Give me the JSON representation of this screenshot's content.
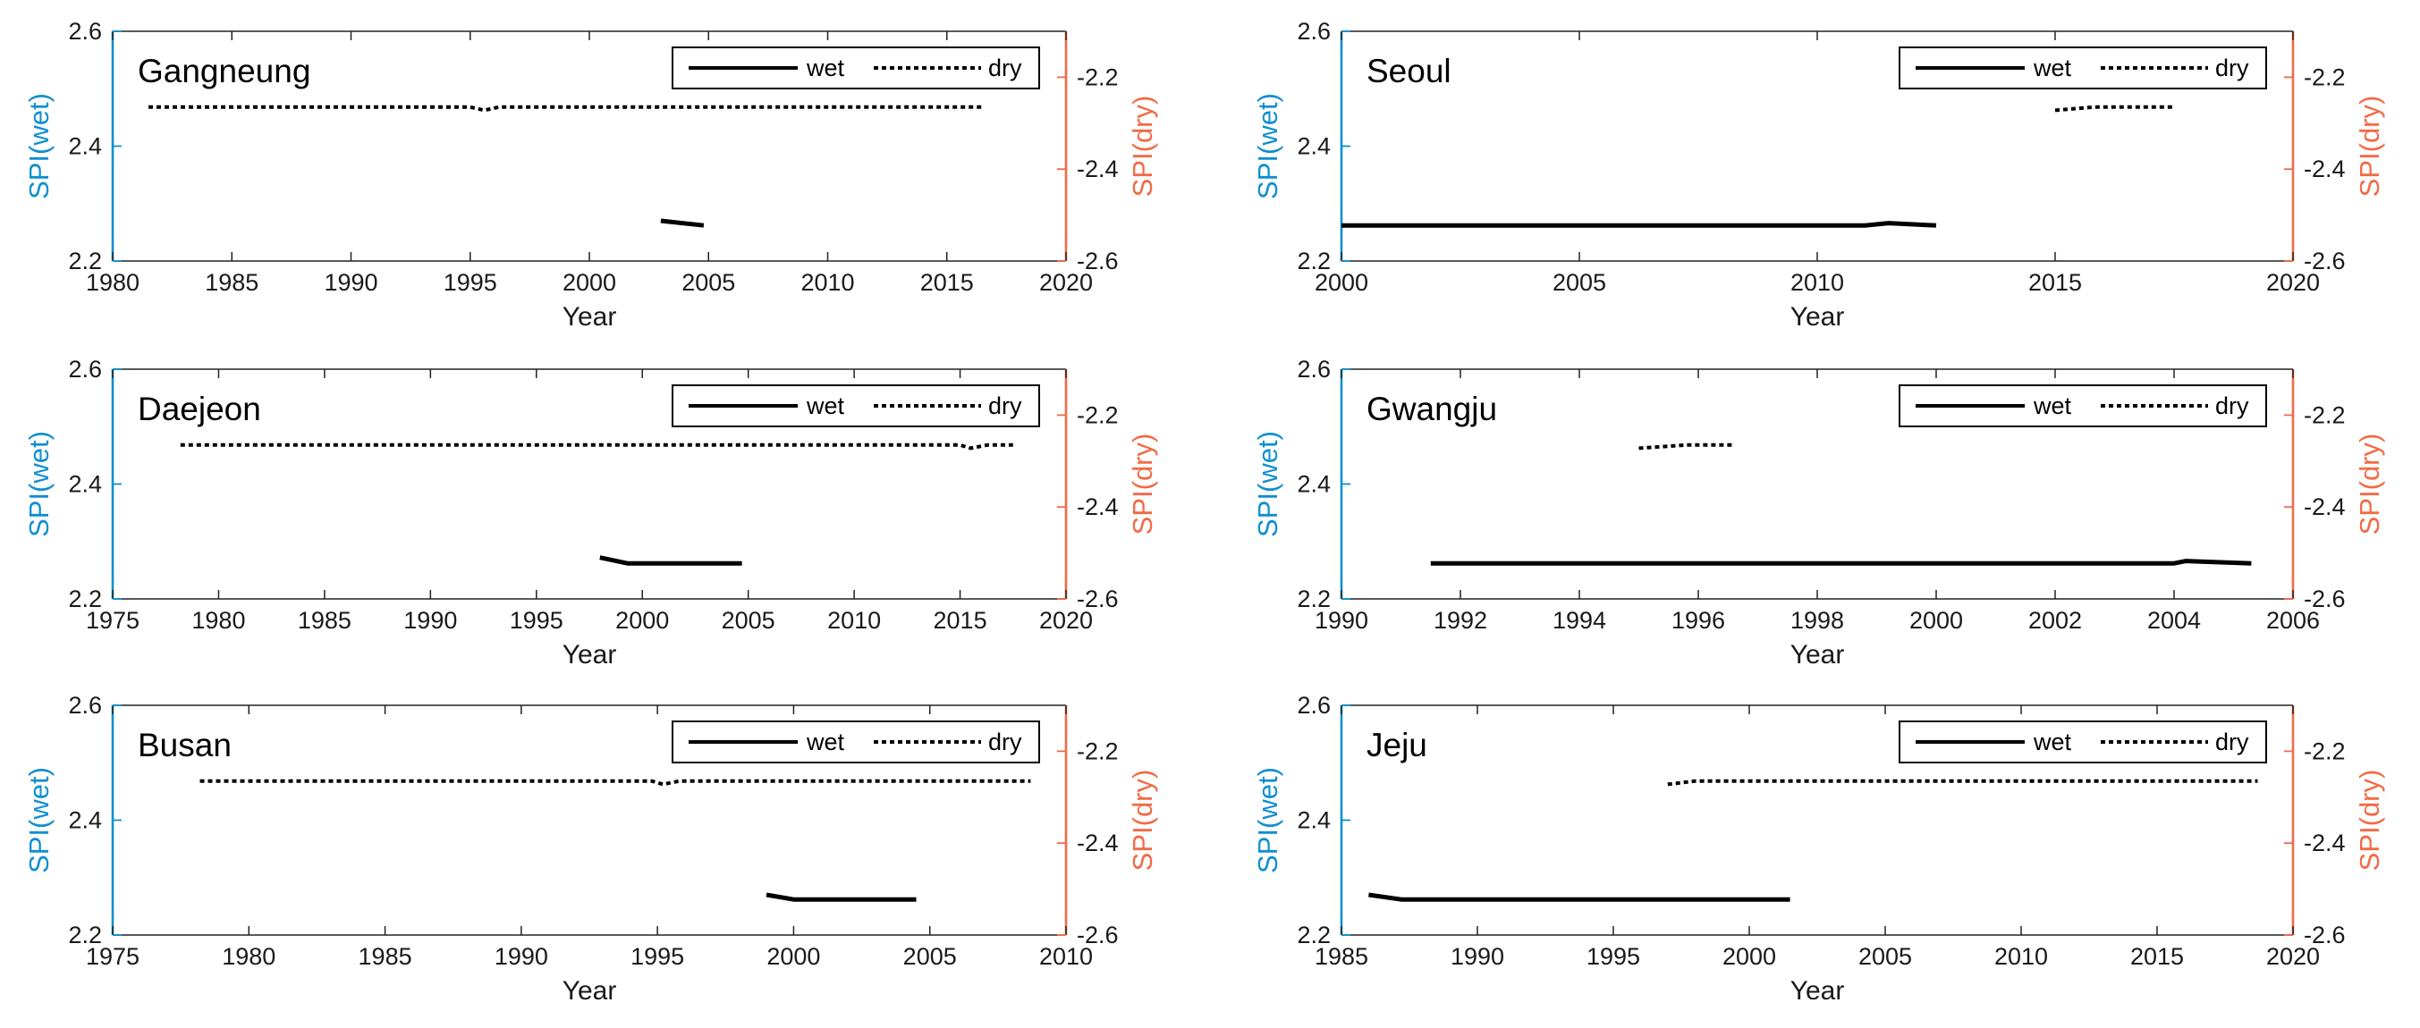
{
  "legend": {
    "wet": "wet",
    "dry": "dry"
  },
  "colors": {
    "wet_axis": "#0f8fd0",
    "dry_axis": "#f26a45",
    "series": "#000000"
  },
  "chart_data": [
    {
      "type": "line",
      "title": "Gangneung",
      "xlabel": "Year",
      "ylabel_left": "SPI(wet)",
      "ylabel_right": "SPI(dry)",
      "xlim": [
        1980,
        2020
      ],
      "xticks": [
        1980,
        1985,
        1990,
        1995,
        2000,
        2005,
        2010,
        2015,
        2020
      ],
      "ylim_wet": [
        2.2,
        2.6
      ],
      "yticks_wet": [
        2.2,
        2.4,
        2.6
      ],
      "ylim_dry": [
        -2.6,
        -2.1
      ],
      "yticks_dry": [
        -2.6,
        -2.4,
        -2.2
      ],
      "series": [
        {
          "name": "wet",
          "style": "solid",
          "points": [
            [
              2003,
              2.27
            ],
            [
              2004.8,
              2.262
            ]
          ]
        },
        {
          "name": "dry",
          "style": "dotted",
          "points": [
            [
              1981.5,
              -2.265
            ],
            [
              1995,
              -2.265
            ],
            [
              1995.6,
              -2.272
            ],
            [
              1996.2,
              -2.265
            ],
            [
              2016.5,
              -2.265
            ]
          ]
        }
      ]
    },
    {
      "type": "line",
      "title": "Seoul",
      "xlabel": "Year",
      "ylabel_left": "SPI(wet)",
      "ylabel_right": "SPI(dry)",
      "xlim": [
        2000,
        2020
      ],
      "xticks": [
        2000,
        2005,
        2010,
        2015,
        2020
      ],
      "ylim_wet": [
        2.2,
        2.6
      ],
      "yticks_wet": [
        2.2,
        2.4,
        2.6
      ],
      "ylim_dry": [
        -2.6,
        -2.1
      ],
      "yticks_dry": [
        -2.6,
        -2.4,
        -2.2
      ],
      "series": [
        {
          "name": "wet",
          "style": "solid",
          "points": [
            [
              2000,
              2.262
            ],
            [
              2011,
              2.262
            ],
            [
              2011.5,
              2.266
            ],
            [
              2012.5,
              2.262
            ]
          ]
        },
        {
          "name": "dry",
          "style": "dotted",
          "points": [
            [
              2015,
              -2.272
            ],
            [
              2015.8,
              -2.265
            ],
            [
              2017.5,
              -2.265
            ]
          ]
        }
      ]
    },
    {
      "type": "line",
      "title": "Daejeon",
      "xlabel": "Year",
      "ylabel_left": "SPI(wet)",
      "ylabel_right": "SPI(dry)",
      "xlim": [
        1975,
        2020
      ],
      "xticks": [
        1975,
        1980,
        1985,
        1990,
        1995,
        2000,
        2005,
        2010,
        2015,
        2020
      ],
      "ylim_wet": [
        2.2,
        2.6
      ],
      "yticks_wet": [
        2.2,
        2.4,
        2.6
      ],
      "ylim_dry": [
        -2.6,
        -2.1
      ],
      "yticks_dry": [
        -2.6,
        -2.4,
        -2.2
      ],
      "series": [
        {
          "name": "wet",
          "style": "solid",
          "points": [
            [
              1998,
              2.272
            ],
            [
              1999.3,
              2.262
            ],
            [
              2004.7,
              2.262
            ]
          ]
        },
        {
          "name": "dry",
          "style": "dotted",
          "points": [
            [
              1978.2,
              -2.265
            ],
            [
              2015,
              -2.265
            ],
            [
              2015.5,
              -2.272
            ],
            [
              2016.3,
              -2.265
            ],
            [
              2017.5,
              -2.265
            ]
          ]
        }
      ]
    },
    {
      "type": "line",
      "title": "Gwangju",
      "xlabel": "Year",
      "ylabel_left": "SPI(wet)",
      "ylabel_right": "SPI(dry)",
      "xlim": [
        1990,
        2006
      ],
      "xticks": [
        1990,
        1992,
        1994,
        1996,
        1998,
        2000,
        2002,
        2004,
        2006
      ],
      "ylim_wet": [
        2.2,
        2.6
      ],
      "yticks_wet": [
        2.2,
        2.4,
        2.6
      ],
      "ylim_dry": [
        -2.6,
        -2.1
      ],
      "yticks_dry": [
        -2.6,
        -2.4,
        -2.2
      ],
      "series": [
        {
          "name": "wet",
          "style": "solid",
          "points": [
            [
              1991.5,
              2.262
            ],
            [
              2004,
              2.262
            ],
            [
              2004.2,
              2.266
            ],
            [
              2005.3,
              2.262
            ]
          ]
        },
        {
          "name": "dry",
          "style": "dotted",
          "points": [
            [
              1995,
              -2.272
            ],
            [
              1995.8,
              -2.265
            ],
            [
              1996.6,
              -2.265
            ]
          ]
        }
      ]
    },
    {
      "type": "line",
      "title": "Busan",
      "xlabel": "Year",
      "ylabel_left": "SPI(wet)",
      "ylabel_right": "SPI(dry)",
      "xlim": [
        1975,
        2010
      ],
      "xticks": [
        1975,
        1980,
        1985,
        1990,
        1995,
        2000,
        2005,
        2010
      ],
      "ylim_wet": [
        2.2,
        2.6
      ],
      "yticks_wet": [
        2.2,
        2.4,
        2.6
      ],
      "ylim_dry": [
        -2.6,
        -2.1
      ],
      "yticks_dry": [
        -2.6,
        -2.4,
        -2.2
      ],
      "series": [
        {
          "name": "wet",
          "style": "solid",
          "points": [
            [
              1999,
              2.27
            ],
            [
              2000,
              2.262
            ],
            [
              2004.5,
              2.262
            ]
          ]
        },
        {
          "name": "dry",
          "style": "dotted",
          "points": [
            [
              1978.2,
              -2.265
            ],
            [
              1994.8,
              -2.265
            ],
            [
              1995.2,
              -2.272
            ],
            [
              1995.8,
              -2.265
            ],
            [
              2008.7,
              -2.265
            ]
          ]
        }
      ]
    },
    {
      "type": "line",
      "title": "Jeju",
      "xlabel": "Year",
      "ylabel_left": "SPI(wet)",
      "ylabel_right": "SPI(dry)",
      "xlim": [
        1985,
        2020
      ],
      "xticks": [
        1985,
        1990,
        1995,
        2000,
        2005,
        2010,
        2015,
        2020
      ],
      "ylim_wet": [
        2.2,
        2.6
      ],
      "yticks_wet": [
        2.2,
        2.4,
        2.6
      ],
      "ylim_dry": [
        -2.6,
        -2.1
      ],
      "yticks_dry": [
        -2.6,
        -2.4,
        -2.2
      ],
      "series": [
        {
          "name": "wet",
          "style": "solid",
          "points": [
            [
              1986,
              2.27
            ],
            [
              1987.2,
              2.262
            ],
            [
              2001.5,
              2.262
            ]
          ]
        },
        {
          "name": "dry",
          "style": "dotted",
          "points": [
            [
              1997,
              -2.272
            ],
            [
              1998,
              -2.265
            ],
            [
              2018.7,
              -2.265
            ]
          ]
        }
      ]
    }
  ]
}
